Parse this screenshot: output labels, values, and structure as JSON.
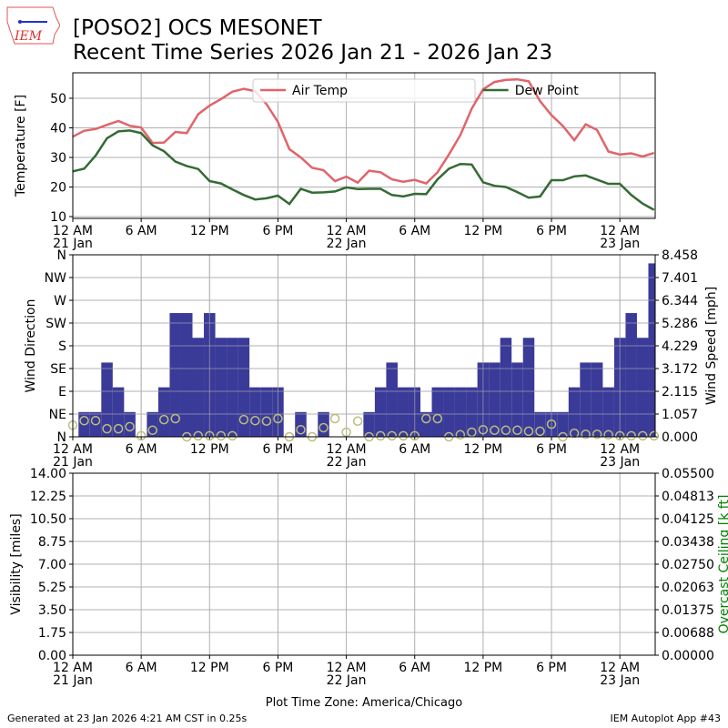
{
  "header": {
    "title_line1": "[POSO2] OCS MESONET",
    "title_line2": "Recent Time Series 2026 Jan 21 - 2026 Jan 23",
    "logo_text": "IEM"
  },
  "footer": {
    "generated": "Generated at 23 Jan 2026 4:21 AM CST in 0.25s",
    "app": "IEM Autoplot App #43"
  },
  "colors": {
    "air": "#e0646a",
    "dew": "#356a35",
    "bars": "#3a3a99",
    "circles": "#bdbd7e",
    "ceiling": "#008000"
  },
  "chart_data": [
    {
      "type": "line",
      "title": "",
      "ylabel": "Temperature [F]",
      "ylim": [
        9.4,
        58.6
      ],
      "yticks": [
        10,
        20,
        30,
        40,
        50
      ],
      "x_unit": "hours since 12 AM 21 Jan",
      "xlim": [
        0,
        51.1
      ],
      "xticks": [
        {
          "h": 0,
          "l1": "12 AM",
          "l2": "21 Jan"
        },
        {
          "h": 6,
          "l1": "6 AM",
          "l2": ""
        },
        {
          "h": 12,
          "l1": "12 PM",
          "l2": ""
        },
        {
          "h": 18,
          "l1": "6 PM",
          "l2": ""
        },
        {
          "h": 24,
          "l1": "12 AM",
          "l2": "22 Jan"
        },
        {
          "h": 30,
          "l1": "6 AM",
          "l2": ""
        },
        {
          "h": 36,
          "l1": "12 PM",
          "l2": ""
        },
        {
          "h": 42,
          "l1": "6 PM",
          "l2": ""
        },
        {
          "h": 48,
          "l1": "12 AM",
          "l2": "23 Jan"
        }
      ],
      "legend": "top-center",
      "series": [
        {
          "name": "Air Temp",
          "values": [
            37,
            39,
            39.6,
            41,
            42.3,
            40.7,
            40.1,
            34.9,
            35,
            38.6,
            38.2,
            44.6,
            47.5,
            49.7,
            52.2,
            53.2,
            52.4,
            48,
            42,
            32.8,
            30,
            26.5,
            25.7,
            22,
            23.5,
            21.5,
            25.5,
            25,
            22.6,
            21.8,
            22.4,
            21.2,
            25,
            31,
            37.5,
            46.5,
            53,
            55.5,
            56.2,
            56.4,
            55.7,
            49,
            44.3,
            40.6,
            35.8,
            41.2,
            39.3,
            32,
            31,
            31.4,
            30.3,
            31.5
          ]
        },
        {
          "name": "Dew Point",
          "values": [
            25.3,
            26.2,
            30.6,
            36.5,
            38.8,
            39.1,
            38.2,
            34.1,
            32.1,
            28.6,
            27.1,
            26.1,
            22,
            21.2,
            19.2,
            17.3,
            15.8,
            16.2,
            17.1,
            14.3,
            19.4,
            18.1,
            18.2,
            18.5,
            19.9,
            19.3,
            19.4,
            19.4,
            17.3,
            16.8,
            17.7,
            17.6,
            22.6,
            26.2,
            27.8,
            27.6,
            21.6,
            20.4,
            20,
            18.3,
            16.4,
            16.8,
            22.3,
            22.3,
            23.6,
            23.9,
            22.5,
            21.1,
            21.1,
            17.3,
            14.4,
            12.3
          ]
        }
      ]
    },
    {
      "type": "bar",
      "ylabel": "Wind Direction",
      "ylabel_right": "Wind Speed [mph]",
      "ylim": [
        0,
        360
      ],
      "yticks": [
        "N",
        "NE",
        "E",
        "SE",
        "S",
        "SW",
        "W",
        "NW",
        "N"
      ],
      "ylim_right": [
        0,
        8.458
      ],
      "yticks_right": [
        "0.000",
        "1.057",
        "2.115",
        "3.172",
        "4.229",
        "5.286",
        "6.344",
        "7.401",
        "8.458"
      ],
      "speed_mph": [
        0,
        1.15,
        1.15,
        3.45,
        2.3,
        1.15,
        0,
        1.15,
        2.3,
        5.75,
        5.75,
        4.6,
        5.75,
        4.6,
        4.6,
        4.6,
        2.3,
        2.3,
        2.3,
        0,
        1.15,
        0,
        1.15,
        0,
        0,
        0,
        1.15,
        2.3,
        3.45,
        2.3,
        2.3,
        1.15,
        2.3,
        2.3,
        2.3,
        2.3,
        3.45,
        3.45,
        4.6,
        3.45,
        4.6,
        1.15,
        1.15,
        1.15,
        2.3,
        3.45,
        3.45,
        2.3,
        4.6,
        5.75,
        4.6,
        8.06
      ],
      "direction_deg": [
        23,
        32,
        32,
        16,
        16,
        20,
        2,
        13,
        34,
        36,
        0,
        2,
        2,
        2,
        2,
        34,
        32,
        31,
        36,
        0,
        14,
        0,
        18,
        36,
        9,
        31,
        0,
        2,
        2,
        2,
        2,
        36,
        36,
        0,
        4,
        9,
        14,
        13,
        13,
        13,
        11,
        11,
        25,
        0,
        7,
        5,
        5,
        4,
        2,
        2,
        2,
        2
      ]
    },
    {
      "type": "line",
      "ylabel": "Visibility [miles]",
      "ylabel_right": "Overcast Ceiling [k ft]",
      "ylim": [
        0,
        14
      ],
      "yticks": [
        "0.00",
        "1.75",
        "3.50",
        "5.25",
        "7.00",
        "8.75",
        "10.50",
        "12.25",
        "14.00"
      ],
      "ylim_right": [
        0,
        0.055
      ],
      "yticks_right": [
        "0.00000",
        "0.00688",
        "0.01375",
        "0.02063",
        "0.02750",
        "0.03438",
        "0.04125",
        "0.04813",
        "0.05500"
      ],
      "xlabel": "Plot Time Zone: America/Chicago",
      "series": []
    }
  ]
}
